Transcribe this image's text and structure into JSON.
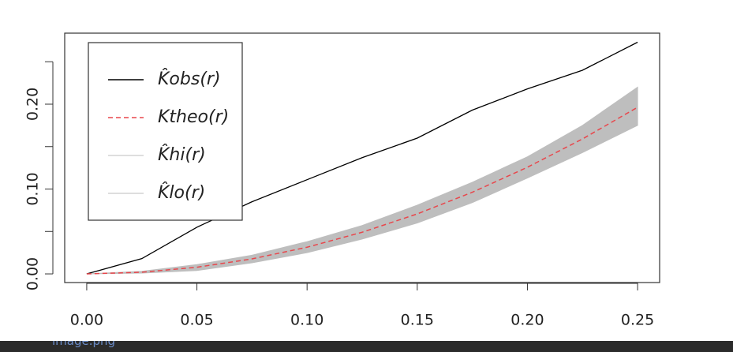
{
  "chart_data": {
    "type": "line",
    "x": [
      0,
      0.025,
      0.05,
      0.075,
      0.1,
      0.125,
      0.15,
      0.175,
      0.2,
      0.225,
      0.25
    ],
    "series": [
      {
        "name": "K̂obs(r)",
        "color": "#000000",
        "dash": false,
        "values": [
          0,
          0.018,
          0.055,
          0.085,
          0.111,
          0.137,
          0.16,
          0.193,
          0.218,
          0.24,
          0.273
        ]
      },
      {
        "name": "Ktheo(r)",
        "color": "#e8474c",
        "dash": true,
        "values": [
          0,
          0.00196,
          0.00785,
          0.01767,
          0.03142,
          0.04909,
          0.07069,
          0.09621,
          0.12566,
          0.15904,
          0.19635
        ]
      },
      {
        "name": "K̂hi(r)",
        "color": "#d3d3d3",
        "dash": false,
        "values": [
          0,
          0.003,
          0.011,
          0.022,
          0.038,
          0.057,
          0.081,
          0.108,
          0.138,
          0.175,
          0.22
        ]
      },
      {
        "name": "K̂lo(r)",
        "color": "#d3d3d3",
        "dash": false,
        "values": [
          0,
          0.001,
          0.004,
          0.013,
          0.025,
          0.041,
          0.06,
          0.084,
          0.113,
          0.143,
          0.175
        ]
      }
    ],
    "band_fill": "#bebebe",
    "xlim": [
      -0.01,
      0.26
    ],
    "xticks": [
      {
        "value": 0,
        "label": "0.00"
      },
      0.05,
      {
        "value": 0.1,
        "label": "0.10"
      },
      0.15,
      {
        "value": 0.2,
        "label": "0.20"
      },
      0.25
    ],
    "ylim": [
      -0.0102,
      0.2837
    ],
    "yticks": [
      {
        "value": 0,
        "label": "0.00"
      },
      {
        "value": 0.05,
        "label": null
      },
      {
        "value": 0.1,
        "label": "0.10"
      },
      {
        "value": 0.15,
        "label": null
      },
      {
        "value": 0.2,
        "label": "0.20"
      },
      {
        "value": 0.25,
        "label": null
      }
    ],
    "legend": "top-left",
    "grid": false
  },
  "footer": {
    "filename": "image.png"
  }
}
